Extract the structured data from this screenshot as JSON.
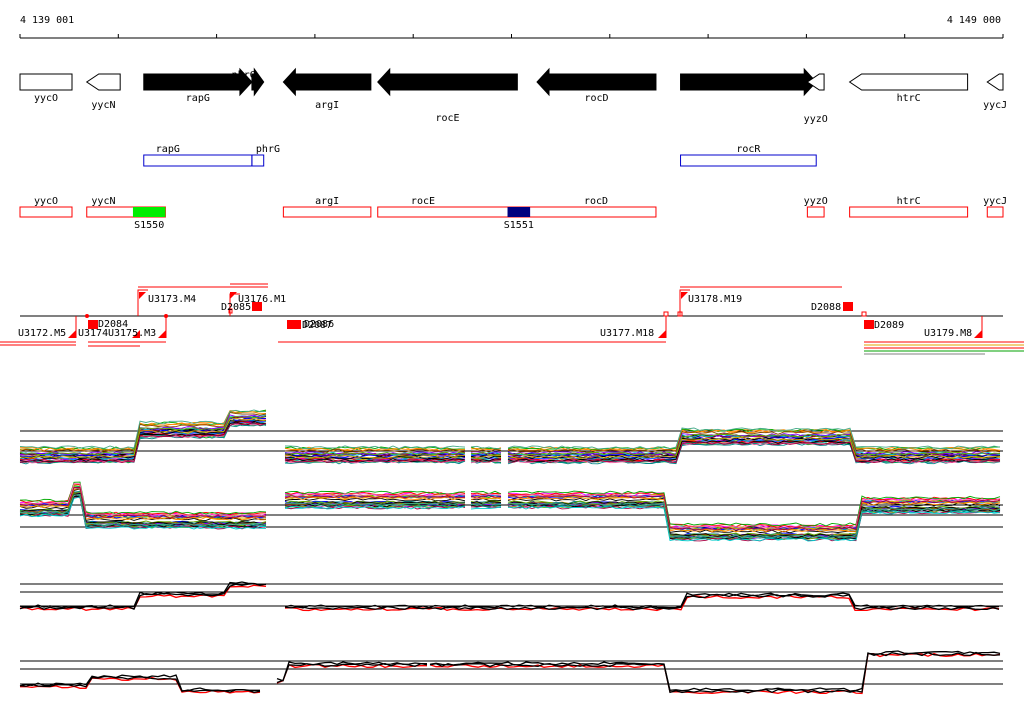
{
  "coords": {
    "start": "4 139 001",
    "end": "4 149 000"
  },
  "genes": [
    {
      "name": "yycO",
      "strand": "+",
      "fill": "white",
      "start": 4139001,
      "end": 4139530
    },
    {
      "name": "yycN",
      "strand": "-",
      "fill": "white",
      "start": 4139680,
      "end": 4140020
    },
    {
      "name": "rapG",
      "strand": "+",
      "fill": "black",
      "start": 4140260,
      "end": 4141360
    },
    {
      "name": "phrG",
      "strand": "+",
      "fill": "black",
      "start": 4141360,
      "end": 4141480
    },
    {
      "name": "argI",
      "strand": "-",
      "fill": "black",
      "start": 4141680,
      "end": 4142570
    },
    {
      "name": "rocE",
      "strand": "-",
      "fill": "black",
      "start": 4142640,
      "end": 4144060
    },
    {
      "name": "rocD",
      "strand": "-",
      "fill": "black",
      "start": 4144260,
      "end": 4145470
    },
    {
      "name": "rocR",
      "strand": "+",
      "fill": "black",
      "start": 4145720,
      "end": 4147100
    },
    {
      "name": "yyzO",
      "strand": "-",
      "fill": "white",
      "start": 4147010,
      "end": 4147180
    },
    {
      "name": "htrC",
      "strand": "-",
      "fill": "white",
      "start": 4147440,
      "end": 4148640
    },
    {
      "name": "yycJ",
      "strand": "-",
      "fill": "white",
      "start": 4148840,
      "end": 4149000
    }
  ],
  "blue_features": [
    {
      "name": "rapG",
      "start": 4140260,
      "end": 4141360
    },
    {
      "name": "phrG",
      "start": 4141360,
      "end": 4141480
    },
    {
      "name": "rocR",
      "start": 4145720,
      "end": 4147100
    }
  ],
  "red_features": [
    {
      "name": "yycO",
      "start": 4139001,
      "end": 4139530
    },
    {
      "name": "yycN",
      "start": 4139680,
      "end": 4140480
    },
    {
      "name": "argI",
      "start": 4141680,
      "end": 4142570
    },
    {
      "name": "rocE",
      "start": 4142640,
      "end": 4145470
    },
    {
      "name": "rocD",
      "start": 4142640,
      "end": 4145470
    },
    {
      "name": "yyzO",
      "start": 4147010,
      "end": 4147180
    },
    {
      "name": "htrC",
      "start": 4147440,
      "end": 4148640
    },
    {
      "name": "yycJ",
      "start": 4148840,
      "end": 4149000
    }
  ],
  "segments": [
    {
      "name": "S1550",
      "color": "#00ee00",
      "start": 4140150,
      "end": 4140480
    },
    {
      "name": "S1551",
      "color": "#00007f",
      "start": 4143960,
      "end": 4144190
    }
  ],
  "transcript_labels": [
    {
      "name": "U3173.M4"
    },
    {
      "name": "U3176.M1"
    },
    {
      "name": "D2085"
    },
    {
      "name": "U3178.M19"
    },
    {
      "name": "D2088"
    },
    {
      "name": "U3172.M5"
    },
    {
      "name": "D2084"
    },
    {
      "name": "U3174"
    },
    {
      "name": "U3175.M3"
    },
    {
      "name": "D2087"
    },
    {
      "name": "D2086"
    },
    {
      "name": "U3177.M18"
    },
    {
      "name": "D2089"
    },
    {
      "name": "U3179.M8"
    }
  ],
  "colors": {
    "feature_red": "#ff0000",
    "feature_blue": "#0000cc",
    "gene_black": "#000000",
    "axis": "#000000"
  }
}
